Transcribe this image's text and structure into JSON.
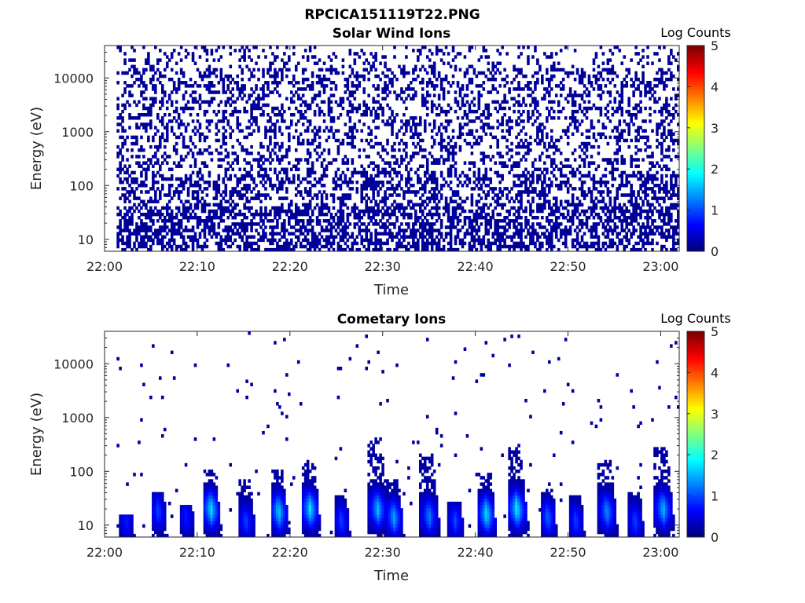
{
  "figure": {
    "title": "RPCICA151119T22.PNG"
  },
  "chart_data": [
    {
      "type": "heatmap",
      "title": "Solar Wind Ions",
      "xlabel": "Time",
      "ylabel": "Energy (eV)",
      "x_ticks": [
        "22:00",
        "22:10",
        "22:20",
        "22:30",
        "22:40",
        "22:50",
        "23:00"
      ],
      "xlim": [
        "22:00",
        "23:02"
      ],
      "y_scale": "log",
      "y_ticks": [
        "10",
        "100",
        "1000",
        "10000"
      ],
      "ylim": [
        6,
        40000
      ],
      "colorbar": {
        "label": "Log Counts",
        "ticks": [
          "0",
          "1",
          "2",
          "3",
          "4",
          "5"
        ],
        "range": [
          0,
          5
        ],
        "colormap": "jet"
      },
      "description_values": {
        "background_level": 0.1,
        "pattern": "sparse noise at ~0.1 log counts across all energies, dense at low energies",
        "first_time": "22:01",
        "last_time": "23:02"
      }
    },
    {
      "type": "heatmap",
      "title": "Cometary Ions",
      "xlabel": "Time",
      "ylabel": "Energy (eV)",
      "x_ticks": [
        "22:00",
        "22:10",
        "22:20",
        "22:30",
        "22:40",
        "22:50",
        "23:00"
      ],
      "xlim": [
        "22:00",
        "23:02"
      ],
      "y_scale": "log",
      "y_ticks": [
        "10",
        "100",
        "1000",
        "10000"
      ],
      "ylim": [
        6,
        40000
      ],
      "colorbar": {
        "label": "Log Counts",
        "ticks": [
          "0",
          "1",
          "2",
          "3",
          "4",
          "5"
        ],
        "range": [
          0,
          5
        ],
        "colormap": "jet"
      },
      "bursts": [
        {
          "time_min": 2.3,
          "peak_energy": 12,
          "top_energy": 15,
          "peak_log_counts": 0.8
        },
        {
          "time_min": 5.8,
          "peak_energy": 18,
          "top_energy": 35,
          "peak_log_counts": 1.0
        },
        {
          "time_min": 8.8,
          "peak_energy": 14,
          "top_energy": 22,
          "peak_log_counts": 0.8
        },
        {
          "time_min": 11.5,
          "peak_energy": 20,
          "top_energy": 100,
          "peak_log_counts": 1.8
        },
        {
          "time_min": 15.2,
          "peak_energy": 12,
          "top_energy": 60,
          "peak_log_counts": 1.0
        },
        {
          "time_min": 18.8,
          "peak_energy": 18,
          "top_energy": 90,
          "peak_log_counts": 1.7
        },
        {
          "time_min": 22.2,
          "peak_energy": 20,
          "top_energy": 130,
          "peak_log_counts": 1.8
        },
        {
          "time_min": 25.5,
          "peak_energy": 12,
          "top_energy": 30,
          "peak_log_counts": 1.0
        },
        {
          "time_min": 29.5,
          "peak_energy": 20,
          "top_energy": 400,
          "peak_log_counts": 1.6
        },
        {
          "time_min": 31.2,
          "peak_energy": 14,
          "top_energy": 60,
          "peak_log_counts": 1.5
        },
        {
          "time_min": 35.0,
          "peak_energy": 15,
          "top_energy": 200,
          "peak_log_counts": 1.3
        },
        {
          "time_min": 37.8,
          "peak_energy": 12,
          "top_energy": 25,
          "peak_log_counts": 1.0
        },
        {
          "time_min": 41.2,
          "peak_energy": 16,
          "top_energy": 80,
          "peak_log_counts": 1.8
        },
        {
          "time_min": 44.5,
          "peak_energy": 20,
          "top_energy": 250,
          "peak_log_counts": 1.9
        },
        {
          "time_min": 47.8,
          "peak_energy": 14,
          "top_energy": 40,
          "peak_log_counts": 1.2
        },
        {
          "time_min": 50.8,
          "peak_energy": 12,
          "top_energy": 30,
          "peak_log_counts": 1.0
        },
        {
          "time_min": 54.2,
          "peak_energy": 18,
          "top_energy": 150,
          "peak_log_counts": 1.4
        },
        {
          "time_min": 57.2,
          "peak_energy": 12,
          "top_energy": 35,
          "peak_log_counts": 1.0
        },
        {
          "time_min": 60.3,
          "peak_energy": 20,
          "top_energy": 250,
          "peak_log_counts": 1.6
        }
      ]
    }
  ]
}
